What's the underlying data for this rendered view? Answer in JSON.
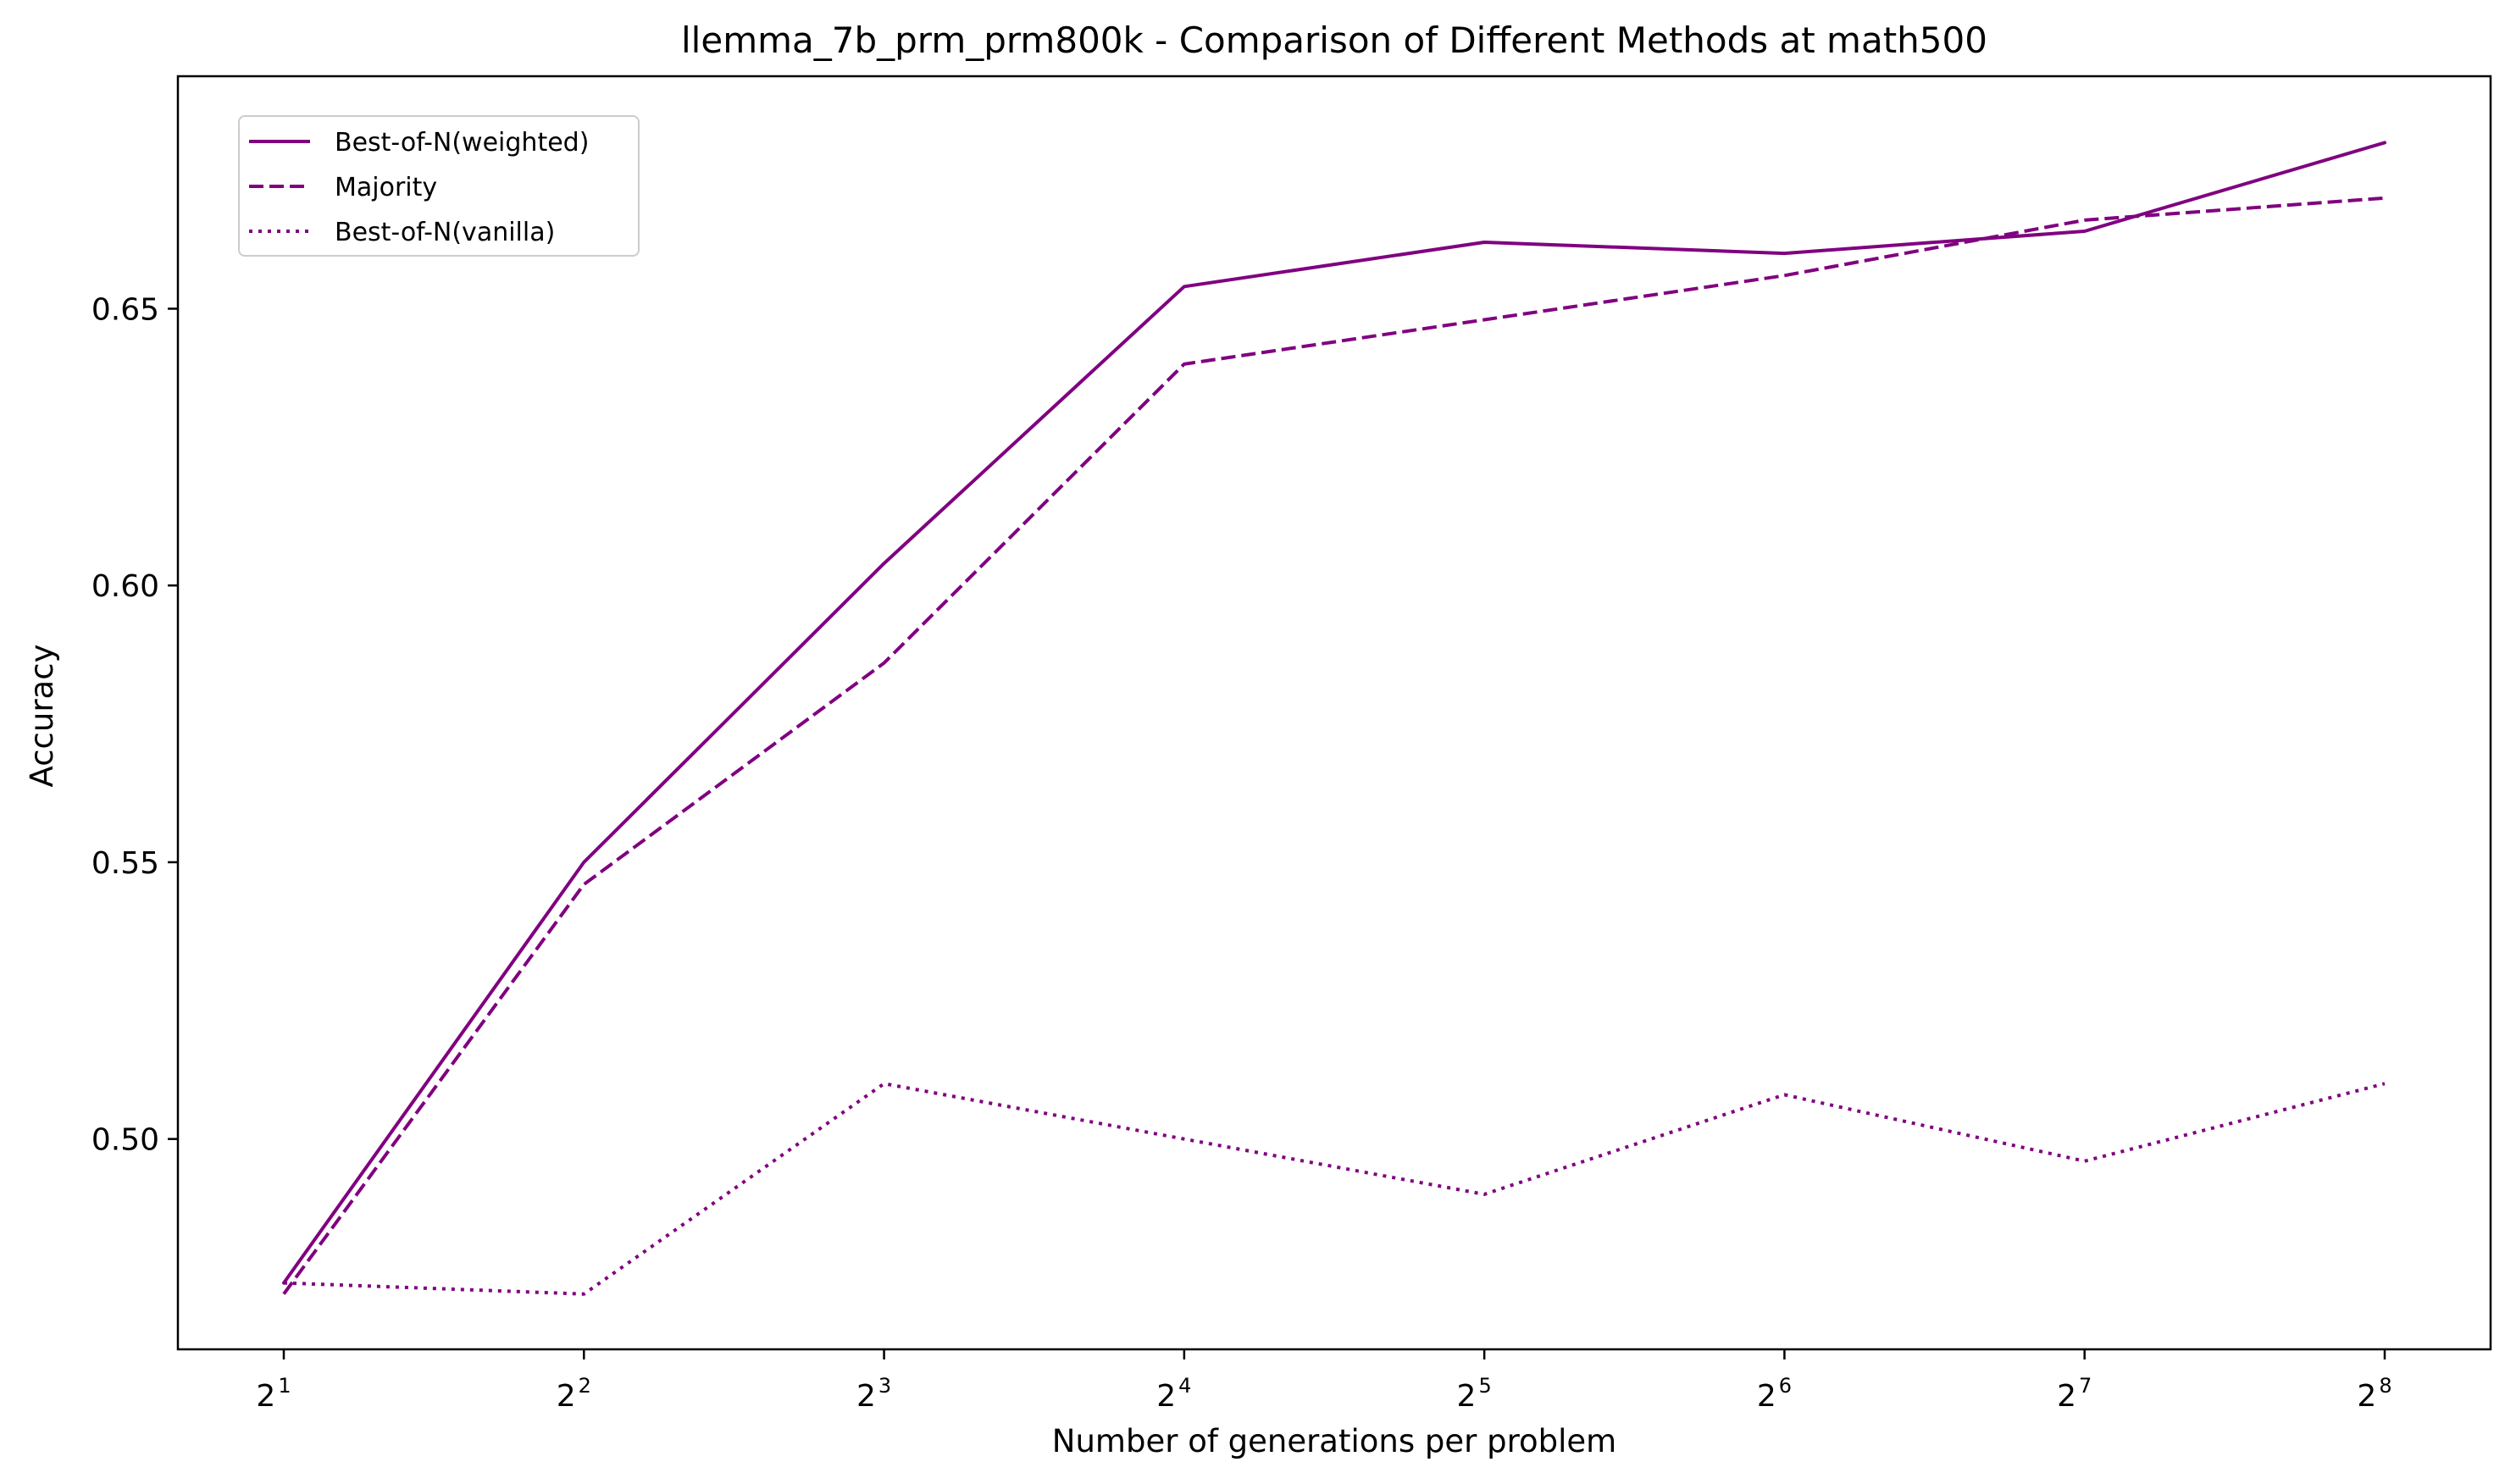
{
  "chart_data": {
    "type": "line",
    "title": "llemma_7b_prm_prm800k - Comparison of Different Methods at math500",
    "xlabel": "Number of generations per problem",
    "ylabel": "Accuracy",
    "x_scale": "log2",
    "x": [
      2,
      4,
      8,
      16,
      32,
      64,
      128,
      256
    ],
    "x_tick_labels": [
      {
        "base": "2",
        "exp": "1"
      },
      {
        "base": "2",
        "exp": "2"
      },
      {
        "base": "2",
        "exp": "3"
      },
      {
        "base": "2",
        "exp": "4"
      },
      {
        "base": "2",
        "exp": "5"
      },
      {
        "base": "2",
        "exp": "6"
      },
      {
        "base": "2",
        "exp": "7"
      },
      {
        "base": "2",
        "exp": "8"
      }
    ],
    "y_ticks": [
      "0.50",
      "0.55",
      "0.60",
      "0.65"
    ],
    "ylim": [
      0.462,
      0.692
    ],
    "grid": false,
    "legend_position": "top-left",
    "series": [
      {
        "name": "Best-of-N(weighted)",
        "linestyle": "solid",
        "color": "#800080",
        "values": [
          0.474,
          0.55,
          0.604,
          0.654,
          0.662,
          0.66,
          0.664,
          0.68
        ]
      },
      {
        "name": "Majority",
        "linestyle": "dashed",
        "color": "#800080",
        "values": [
          0.472,
          0.546,
          0.586,
          0.64,
          0.648,
          0.656,
          0.666,
          0.67
        ]
      },
      {
        "name": "Best-of-N(vanilla)",
        "linestyle": "dotted",
        "color": "#800080",
        "values": [
          0.474,
          0.472,
          0.51,
          0.5,
          0.49,
          0.508,
          0.496,
          0.51
        ]
      }
    ]
  }
}
